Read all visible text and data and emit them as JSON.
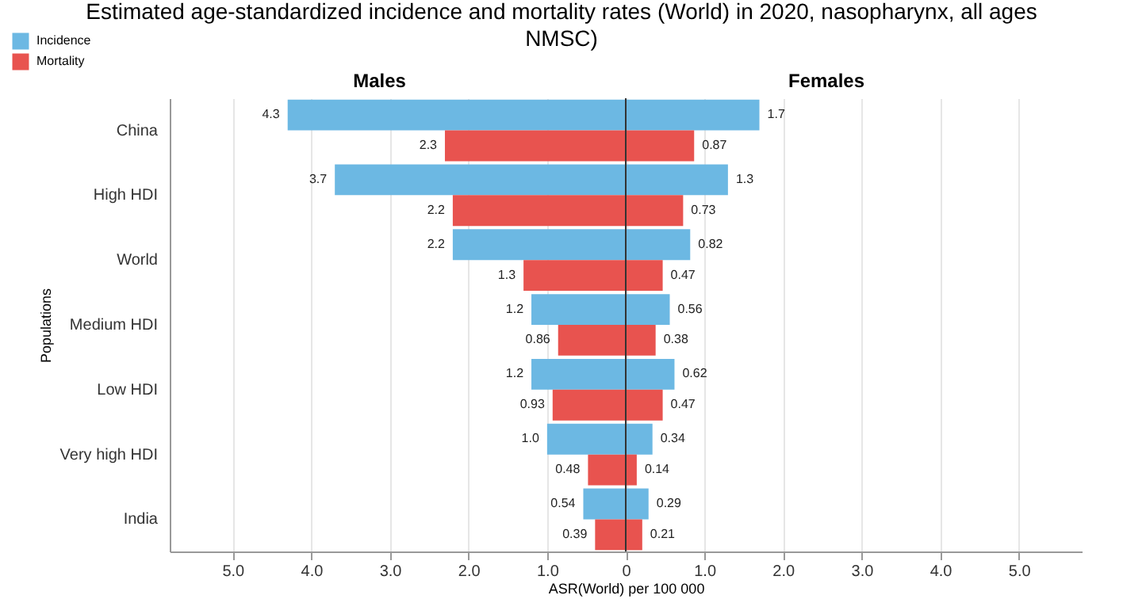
{
  "chart_data": {
    "type": "bar",
    "orientation": "horizontal",
    "title": "Estimated age-standardized incidence and mortality rates (World) in 2020, nasopharynx, all ages NMSC)",
    "xlabel": "ASR(World) per 100 000",
    "ylabel": "Populations",
    "annotations": [
      "Males",
      "Females"
    ],
    "categories": [
      "China",
      "High HDI",
      "World",
      "Medium HDI",
      "Low HDI",
      "Very high HDI",
      "India"
    ],
    "series": [
      {
        "name": "Incidence",
        "color": "#6cb8e3",
        "base": [
          -4.3,
          -3.7,
          -2.2,
          -1.2,
          -1.2,
          -1.0,
          -0.54
        ],
        "values": [
          4.3,
          3.7,
          2.2,
          1.2,
          1.2,
          1.0,
          0.54
        ],
        "value_labels": [
          "4.3",
          "3.7",
          "2.2",
          "1.2",
          "1.2",
          "1.0",
          "0.54"
        ]
      },
      {
        "color": "#6cb8e3",
        "values": [
          1.7,
          1.3,
          0.82,
          0.56,
          0.62,
          0.34,
          0.29
        ],
        "value_labels": [
          "1.7",
          "1.3",
          "0.82",
          "0.56",
          "0.62",
          "0.34",
          "0.29"
        ]
      },
      {
        "name": "Mortality",
        "color": "#e8534f",
        "base": [
          -2.3,
          -2.2,
          -1.3,
          -0.86,
          -0.93,
          -0.48,
          -0.39
        ],
        "values": [
          2.3,
          2.2,
          1.3,
          0.86,
          0.93,
          0.48,
          0.39
        ],
        "value_labels": [
          "2.3",
          "2.2",
          "1.3",
          "0.86",
          "0.93",
          "0.48",
          "0.39"
        ]
      },
      {
        "color": "#e8534f",
        "values": [
          0.87,
          0.73,
          0.47,
          0.38,
          0.47,
          0.14,
          0.21
        ],
        "value_labels": [
          "0.87",
          "0.73",
          "0.47",
          "0.38",
          "0.47",
          "0.14",
          "0.21"
        ]
      }
    ],
    "xlim": [
      -5.8,
      5.8
    ],
    "xticks": [
      {
        "value": -5,
        "label": "5.0"
      },
      {
        "value": -4,
        "label": "4.0"
      },
      {
        "value": -3,
        "label": "3.0"
      },
      {
        "value": -2,
        "label": "2.0"
      },
      {
        "value": -1,
        "label": "1.0"
      },
      0,
      {
        "value": 1,
        "label": "1.0"
      },
      {
        "value": 2,
        "label": "2.0"
      },
      {
        "value": 3,
        "label": "3.0"
      },
      {
        "value": 4,
        "label": "4.0"
      },
      {
        "value": 5,
        "label": "5.0"
      }
    ],
    "ref_lines": [
      {
        "axis": "x",
        "value": 0,
        "color": "#333333"
      }
    ],
    "grid": "x",
    "legend": "top left"
  }
}
